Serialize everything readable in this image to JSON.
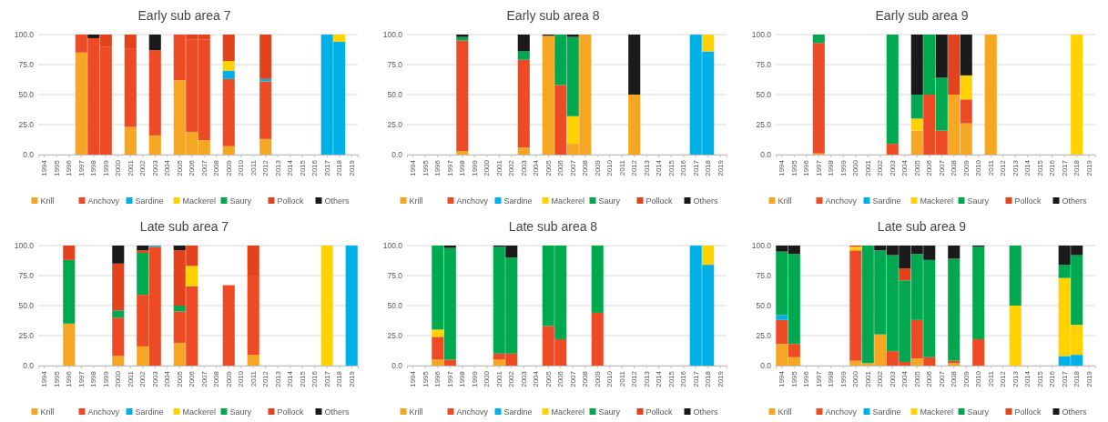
{
  "chart_data": [
    {
      "type": "bar",
      "stacked": true,
      "title": "Early sub area 7",
      "categories": [
        "1994",
        "1995",
        "1996",
        "1997",
        "1998",
        "1999",
        "2000",
        "2001",
        "2002",
        "2003",
        "2004",
        "2005",
        "2006",
        "2007",
        "2008",
        "2009",
        "2010",
        "2011",
        "2012",
        "2013",
        "2014",
        "2015",
        "2016",
        "2017",
        "2018",
        "2019"
      ],
      "ylim": [
        0,
        100
      ],
      "yticks": [
        {
          "value": 0,
          "label": "0.0"
        },
        {
          "value": 25,
          "label": "25.0"
        },
        {
          "value": 50,
          "label": "50.0"
        },
        {
          "value": 75,
          "label": "75.0"
        },
        {
          "value": 100,
          "label": "100.0"
        }
      ],
      "grid": "y",
      "legend": "bottom",
      "series": [
        {
          "name": "Krill",
          "color": "#f5a623",
          "values": [
            0,
            0,
            0,
            85,
            0,
            0,
            0,
            23,
            0,
            16,
            0,
            62,
            19,
            12,
            0,
            7,
            0,
            0,
            13,
            0,
            0,
            0,
            0,
            0,
            0,
            0
          ]
        },
        {
          "name": "Anchovy",
          "color": "#ec4b26",
          "values": [
            0,
            0,
            0,
            15,
            97,
            90,
            0,
            65,
            0,
            71,
            0,
            38,
            77,
            84,
            0,
            56,
            0,
            0,
            48,
            0,
            0,
            0,
            0,
            0,
            0,
            0
          ]
        },
        {
          "name": "Sardine",
          "color": "#00b0e6",
          "values": [
            0,
            0,
            0,
            0,
            0,
            0,
            0,
            0,
            0,
            0,
            0,
            0,
            0,
            0,
            0,
            7,
            0,
            0,
            2,
            0,
            0,
            0,
            0,
            100,
            94,
            0
          ]
        },
        {
          "name": "Mackerel",
          "color": "#ffd200",
          "values": [
            0,
            0,
            0,
            0,
            0,
            0,
            0,
            0,
            0,
            0,
            0,
            0,
            0,
            0,
            0,
            8,
            0,
            0,
            0,
            0,
            0,
            0,
            0,
            0,
            6,
            0
          ]
        },
        {
          "name": "Saury",
          "color": "#00a850",
          "values": [
            0,
            0,
            0,
            0,
            0,
            0,
            0,
            0,
            0,
            0,
            0,
            0,
            0,
            0,
            0,
            0,
            0,
            0,
            0,
            0,
            0,
            0,
            0,
            0,
            0,
            0
          ]
        },
        {
          "name": "Pollock",
          "color": "#e2431d",
          "values": [
            0,
            0,
            0,
            0,
            0,
            10,
            0,
            12,
            0,
            0,
            0,
            0,
            4,
            4,
            0,
            22,
            0,
            0,
            37,
            0,
            0,
            0,
            0,
            0,
            0,
            0
          ]
        },
        {
          "name": "Others",
          "color": "#1a1a1a",
          "values": [
            0,
            0,
            0,
            0,
            3,
            0,
            0,
            0,
            0,
            13,
            0,
            0,
            0,
            0,
            0,
            0,
            0,
            0,
            0,
            0,
            0,
            0,
            0,
            0,
            0,
            0
          ]
        }
      ]
    },
    {
      "type": "bar",
      "stacked": true,
      "title": "Early sub area 8",
      "categories": [
        "1994",
        "1995",
        "1996",
        "1997",
        "1998",
        "1999",
        "2000",
        "2001",
        "2002",
        "2003",
        "2004",
        "2005",
        "2006",
        "2007",
        "2008",
        "2009",
        "2010",
        "2011",
        "2012",
        "2013",
        "2014",
        "2015",
        "2016",
        "2017",
        "2018",
        "2019"
      ],
      "ylim": [
        0,
        100
      ],
      "yticks": [
        {
          "value": 0,
          "label": "0.0"
        },
        {
          "value": 25,
          "label": "25.0"
        },
        {
          "value": 50,
          "label": "50.0"
        },
        {
          "value": 75,
          "label": "75.0"
        },
        {
          "value": 100,
          "label": "100.0"
        }
      ],
      "grid": "y",
      "legend": "bottom",
      "series": [
        {
          "name": "Krill",
          "color": "#f5a623",
          "values": [
            0,
            0,
            0,
            0,
            3,
            0,
            0,
            0,
            0,
            6,
            0,
            99,
            0,
            9,
            100,
            0,
            0,
            0,
            50,
            0,
            0,
            0,
            0,
            0,
            0,
            0
          ]
        },
        {
          "name": "Anchovy",
          "color": "#ec4b26",
          "values": [
            0,
            0,
            0,
            0,
            92,
            0,
            0,
            0,
            0,
            73,
            0,
            0,
            58,
            0,
            0,
            0,
            0,
            0,
            0,
            0,
            0,
            0,
            0,
            0,
            0,
            0
          ]
        },
        {
          "name": "Sardine",
          "color": "#00b0e6",
          "values": [
            0,
            0,
            0,
            0,
            0,
            0,
            0,
            0,
            0,
            0,
            0,
            0,
            0,
            0,
            0,
            0,
            0,
            0,
            0,
            0,
            0,
            0,
            0,
            100,
            86,
            0
          ]
        },
        {
          "name": "Mackerel",
          "color": "#ffd200",
          "values": [
            0,
            0,
            0,
            0,
            0,
            0,
            0,
            0,
            0,
            0,
            0,
            0,
            0,
            23,
            0,
            0,
            0,
            0,
            0,
            0,
            0,
            0,
            0,
            0,
            14,
            0
          ]
        },
        {
          "name": "Saury",
          "color": "#00a850",
          "values": [
            0,
            0,
            0,
            0,
            3,
            0,
            0,
            0,
            0,
            7,
            0,
            0,
            42,
            66,
            0,
            0,
            0,
            0,
            0,
            0,
            0,
            0,
            0,
            0,
            0,
            0
          ]
        },
        {
          "name": "Pollock",
          "color": "#e2431d",
          "values": [
            0,
            0,
            0,
            0,
            0,
            0,
            0,
            0,
            0,
            0,
            0,
            0,
            0,
            0,
            0,
            0,
            0,
            0,
            0,
            0,
            0,
            0,
            0,
            0,
            0,
            0
          ]
        },
        {
          "name": "Others",
          "color": "#1a1a1a",
          "values": [
            0,
            0,
            0,
            0,
            2,
            0,
            0,
            0,
            0,
            14,
            0,
            1,
            0,
            2,
            0,
            0,
            0,
            0,
            50,
            0,
            0,
            0,
            0,
            0,
            0,
            0
          ]
        }
      ]
    },
    {
      "type": "bar",
      "stacked": true,
      "title": "Early sub area 9",
      "categories": [
        "1994",
        "1995",
        "1996",
        "1997",
        "1998",
        "1999",
        "2000",
        "2001",
        "2002",
        "2003",
        "2004",
        "2005",
        "2006",
        "2007",
        "2008",
        "2009",
        "2010",
        "2011",
        "2012",
        "2013",
        "2014",
        "2015",
        "2016",
        "2017",
        "2018",
        "2019"
      ],
      "ylim": [
        0,
        100
      ],
      "yticks": [
        {
          "value": 0,
          "label": "0.0"
        },
        {
          "value": 25,
          "label": "25.0"
        },
        {
          "value": 50,
          "label": "50.0"
        },
        {
          "value": 75,
          "label": "75.0"
        },
        {
          "value": 100,
          "label": "100.0"
        }
      ],
      "grid": "y",
      "legend": "bottom",
      "series": [
        {
          "name": "Krill",
          "color": "#f5a623",
          "values": [
            0,
            0,
            0,
            1,
            0,
            0,
            0,
            0,
            0,
            0,
            0,
            20,
            0,
            0,
            50,
            26,
            0,
            100,
            0,
            0,
            0,
            0,
            0,
            0,
            0,
            0
          ]
        },
        {
          "name": "Anchovy",
          "color": "#ec4b26",
          "values": [
            0,
            0,
            0,
            92,
            0,
            0,
            0,
            0,
            0,
            9,
            0,
            0,
            50,
            20,
            0,
            20,
            0,
            0,
            0,
            0,
            0,
            0,
            0,
            0,
            0,
            0
          ]
        },
        {
          "name": "Sardine",
          "color": "#00b0e6",
          "values": [
            0,
            0,
            0,
            0,
            0,
            0,
            0,
            0,
            0,
            0,
            0,
            0,
            0,
            0,
            0,
            0,
            0,
            0,
            0,
            0,
            0,
            0,
            0,
            0,
            0,
            0
          ]
        },
        {
          "name": "Mackerel",
          "color": "#ffd200",
          "values": [
            0,
            0,
            0,
            0,
            0,
            0,
            0,
            0,
            0,
            0,
            0,
            10,
            0,
            0,
            0,
            20,
            0,
            0,
            0,
            0,
            0,
            0,
            0,
            0,
            100,
            0
          ]
        },
        {
          "name": "Saury",
          "color": "#00a850",
          "values": [
            0,
            0,
            0,
            7,
            0,
            0,
            0,
            0,
            0,
            91,
            0,
            20,
            50,
            44,
            0,
            0,
            0,
            0,
            0,
            0,
            0,
            0,
            0,
            0,
            0,
            0
          ]
        },
        {
          "name": "Pollock",
          "color": "#e2431d",
          "values": [
            0,
            0,
            0,
            0,
            0,
            0,
            0,
            0,
            0,
            0,
            0,
            0,
            0,
            0,
            50,
            0,
            0,
            0,
            0,
            0,
            0,
            0,
            0,
            0,
            0,
            0
          ]
        },
        {
          "name": "Others",
          "color": "#1a1a1a",
          "values": [
            0,
            0,
            0,
            0,
            0,
            0,
            0,
            0,
            0,
            0,
            0,
            50,
            0,
            36,
            0,
            34,
            0,
            0,
            0,
            0,
            0,
            0,
            0,
            0,
            0,
            0
          ]
        }
      ]
    },
    {
      "type": "bar",
      "stacked": true,
      "title": "Late sub area 7",
      "categories": [
        "1994",
        "1995",
        "1996",
        "1997",
        "1998",
        "1999",
        "2000",
        "2001",
        "2002",
        "2003",
        "2004",
        "2005",
        "2006",
        "2007",
        "2008",
        "2009",
        "2010",
        "2011",
        "2012",
        "2013",
        "2014",
        "2015",
        "2016",
        "2017",
        "2018",
        "2019"
      ],
      "ylim": [
        0,
        100
      ],
      "yticks": [
        {
          "value": 0,
          "label": "0.0"
        },
        {
          "value": 25,
          "label": "25.0"
        },
        {
          "value": 50,
          "label": "50.0"
        },
        {
          "value": 75,
          "label": "75.0"
        },
        {
          "value": 100,
          "label": "100.0"
        }
      ],
      "grid": "y",
      "legend": "bottom",
      "series": [
        {
          "name": "Krill",
          "color": "#f5a623",
          "values": [
            0,
            0,
            35,
            0,
            0,
            0,
            8,
            0,
            16,
            0,
            0,
            19,
            0,
            0,
            0,
            0,
            0,
            9,
            0,
            0,
            0,
            0,
            0,
            0,
            0,
            0
          ]
        },
        {
          "name": "Anchovy",
          "color": "#ec4b26",
          "values": [
            0,
            0,
            0,
            0,
            0,
            0,
            32,
            0,
            43,
            99,
            0,
            26,
            66,
            0,
            0,
            67,
            0,
            66,
            0,
            0,
            0,
            0,
            0,
            0,
            0,
            0
          ]
        },
        {
          "name": "Sardine",
          "color": "#00b0e6",
          "values": [
            0,
            0,
            0,
            0,
            0,
            0,
            0,
            0,
            0,
            1,
            0,
            0,
            0,
            0,
            0,
            0,
            0,
            0,
            0,
            0,
            0,
            0,
            0,
            0,
            0,
            100
          ]
        },
        {
          "name": "Mackerel",
          "color": "#ffd200",
          "values": [
            0,
            0,
            0,
            0,
            0,
            0,
            0,
            0,
            0,
            0,
            0,
            0,
            17,
            0,
            0,
            0,
            0,
            0,
            0,
            0,
            0,
            0,
            0,
            100,
            0,
            0
          ]
        },
        {
          "name": "Saury",
          "color": "#00a850",
          "values": [
            0,
            0,
            53,
            0,
            0,
            0,
            6,
            0,
            35,
            0,
            0,
            5,
            0,
            0,
            0,
            0,
            0,
            0,
            0,
            0,
            0,
            0,
            0,
            0,
            0,
            0
          ]
        },
        {
          "name": "Pollock",
          "color": "#e2431d",
          "values": [
            0,
            0,
            12,
            0,
            0,
            0,
            39,
            0,
            2,
            0,
            0,
            46,
            17,
            0,
            0,
            0,
            0,
            25,
            0,
            0,
            0,
            0,
            0,
            0,
            0,
            0
          ]
        },
        {
          "name": "Others",
          "color": "#1a1a1a",
          "values": [
            0,
            0,
            0,
            0,
            0,
            0,
            15,
            0,
            4,
            0,
            0,
            4,
            0,
            0,
            0,
            0,
            0,
            0,
            0,
            0,
            0,
            0,
            0,
            0,
            0,
            0
          ]
        }
      ]
    },
    {
      "type": "bar",
      "stacked": true,
      "title": "Late sub area 8",
      "categories": [
        "1994",
        "1995",
        "1996",
        "1997",
        "1998",
        "1999",
        "2000",
        "2001",
        "2002",
        "2003",
        "2004",
        "2005",
        "2006",
        "2007",
        "2008",
        "2009",
        "2010",
        "2011",
        "2012",
        "2013",
        "2014",
        "2015",
        "2016",
        "2017",
        "2018",
        "2019"
      ],
      "ylim": [
        0,
        100
      ],
      "yticks": [
        {
          "value": 0,
          "label": "0.0"
        },
        {
          "value": 25,
          "label": "25.0"
        },
        {
          "value": 50,
          "label": "50.0"
        },
        {
          "value": 75,
          "label": "75.0"
        },
        {
          "value": 100,
          "label": "100.0"
        }
      ],
      "grid": "y",
      "legend": "bottom",
      "series": [
        {
          "name": "Krill",
          "color": "#f5a623",
          "values": [
            0,
            0,
            5,
            0,
            0,
            0,
            0,
            5,
            0,
            0,
            0,
            0,
            0,
            0,
            0,
            0,
            0,
            0,
            0,
            0,
            0,
            0,
            0,
            0,
            0,
            0
          ]
        },
        {
          "name": "Anchovy",
          "color": "#ec4b26",
          "values": [
            0,
            0,
            19,
            5,
            0,
            0,
            0,
            5,
            10,
            0,
            0,
            33,
            22,
            0,
            0,
            44,
            0,
            0,
            0,
            0,
            0,
            0,
            0,
            0,
            0,
            0
          ]
        },
        {
          "name": "Sardine",
          "color": "#00b0e6",
          "values": [
            0,
            0,
            0,
            0,
            0,
            0,
            0,
            0,
            0,
            0,
            0,
            0,
            0,
            0,
            0,
            0,
            0,
            0,
            0,
            0,
            0,
            0,
            0,
            100,
            84,
            0
          ]
        },
        {
          "name": "Mackerel",
          "color": "#ffd200",
          "values": [
            0,
            0,
            6,
            0,
            0,
            0,
            0,
            0,
            0,
            0,
            0,
            0,
            0,
            0,
            0,
            0,
            0,
            0,
            0,
            0,
            0,
            0,
            0,
            0,
            16,
            0
          ]
        },
        {
          "name": "Saury",
          "color": "#00a850",
          "values": [
            0,
            0,
            70,
            93,
            0,
            0,
            0,
            89,
            80,
            0,
            0,
            67,
            78,
            0,
            0,
            56,
            0,
            0,
            0,
            0,
            0,
            0,
            0,
            0,
            0,
            0
          ]
        },
        {
          "name": "Pollock",
          "color": "#e2431d",
          "values": [
            0,
            0,
            0,
            0,
            0,
            0,
            0,
            0,
            0,
            0,
            0,
            0,
            0,
            0,
            0,
            0,
            0,
            0,
            0,
            0,
            0,
            0,
            0,
            0,
            0,
            0
          ]
        },
        {
          "name": "Others",
          "color": "#1a1a1a",
          "values": [
            0,
            0,
            0,
            2,
            0,
            0,
            0,
            1,
            10,
            0,
            0,
            0,
            0,
            0,
            0,
            0,
            0,
            0,
            0,
            0,
            0,
            0,
            0,
            0,
            0,
            0
          ]
        }
      ]
    },
    {
      "type": "bar",
      "stacked": true,
      "title": "Late sub area 9",
      "categories": [
        "1994",
        "1995",
        "1996",
        "1997",
        "1998",
        "1999",
        "2000",
        "2001",
        "2002",
        "2003",
        "2004",
        "2005",
        "2006",
        "2007",
        "2008",
        "2009",
        "2010",
        "2011",
        "2012",
        "2013",
        "2014",
        "2015",
        "2016",
        "2017",
        "2018",
        "2019"
      ],
      "ylim": [
        0,
        100
      ],
      "yticks": [
        {
          "value": 0,
          "label": "0.0"
        },
        {
          "value": 25,
          "label": "25.0"
        },
        {
          "value": 50,
          "label": "50.0"
        },
        {
          "value": 75,
          "label": "75.0"
        },
        {
          "value": 100,
          "label": "100.0"
        }
      ],
      "grid": "y",
      "legend": "bottom",
      "series": [
        {
          "name": "Krill",
          "color": "#f5a623",
          "values": [
            18,
            7,
            0,
            0,
            0,
            0,
            4,
            2,
            26,
            0,
            0,
            6,
            0,
            0,
            2,
            0,
            0,
            0,
            0,
            0,
            0,
            0,
            0,
            0,
            0,
            0
          ]
        },
        {
          "name": "Anchovy",
          "color": "#ec4b26",
          "values": [
            20,
            11,
            0,
            0,
            0,
            0,
            92,
            0,
            0,
            12,
            3,
            32,
            7,
            0,
            2,
            0,
            22,
            0,
            0,
            0,
            0,
            0,
            0,
            0,
            0,
            0
          ]
        },
        {
          "name": "Sardine",
          "color": "#00b0e6",
          "values": [
            4,
            0,
            0,
            0,
            0,
            0,
            0,
            0,
            0,
            0,
            0,
            0,
            0,
            0,
            0,
            0,
            0,
            0,
            0,
            0,
            0,
            0,
            0,
            8,
            9,
            0
          ]
        },
        {
          "name": "Mackerel",
          "color": "#ffd200",
          "values": [
            0,
            0,
            0,
            0,
            0,
            0,
            3,
            0,
            0,
            0,
            0,
            0,
            0,
            0,
            0,
            0,
            0,
            0,
            0,
            50,
            0,
            0,
            0,
            65,
            25,
            0
          ]
        },
        {
          "name": "Saury",
          "color": "#00a850",
          "values": [
            53,
            75,
            0,
            0,
            0,
            0,
            0,
            98,
            70,
            80,
            68,
            55,
            81,
            0,
            85,
            0,
            77,
            0,
            0,
            50,
            0,
            0,
            0,
            11,
            58,
            0
          ]
        },
        {
          "name": "Pollock",
          "color": "#e2431d",
          "values": [
            0,
            0,
            0,
            0,
            0,
            0,
            1,
            0,
            0,
            0,
            10,
            0,
            0,
            0,
            0,
            0,
            0,
            0,
            0,
            0,
            0,
            0,
            0,
            0,
            0,
            0
          ]
        },
        {
          "name": "Others",
          "color": "#1a1a1a",
          "values": [
            5,
            7,
            0,
            0,
            0,
            0,
            0,
            0,
            4,
            8,
            19,
            7,
            12,
            0,
            11,
            0,
            1,
            0,
            0,
            0,
            0,
            0,
            0,
            16,
            8,
            0
          ]
        }
      ]
    }
  ]
}
